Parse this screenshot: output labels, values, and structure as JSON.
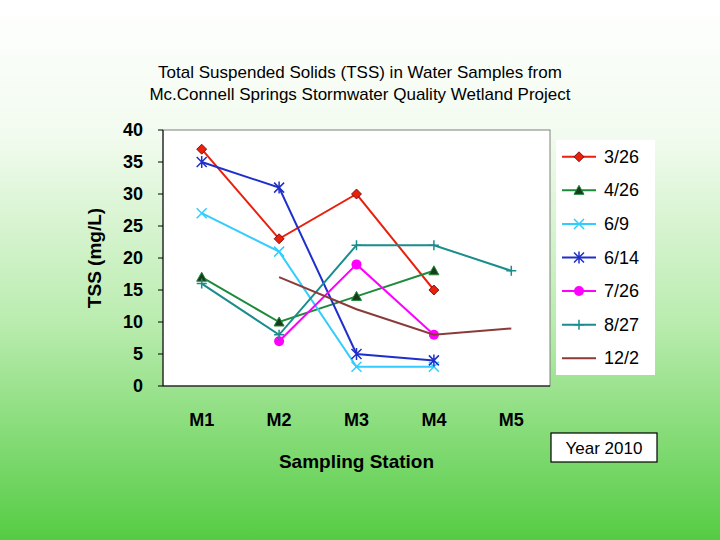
{
  "chart_data": {
    "type": "line",
    "title": "Total Suspended Solids (TSS) in Water Samples from\nMc.Connell Springs Stormwater Quality Wetland Project",
    "x_label": "Sampling Station",
    "y_label": "TSS (mg/L)",
    "annotation": "Year 2010",
    "categories": [
      "M1",
      "M2",
      "M3",
      "M4",
      "M5"
    ],
    "ylim": [
      0,
      40
    ],
    "yticks": [
      0,
      5,
      10,
      15,
      20,
      25,
      30,
      35,
      40
    ],
    "grid": false,
    "legend": "right",
    "series": [
      {
        "name": "3/26",
        "color": "#e8200c",
        "marker": "diamond",
        "values": [
          37,
          23,
          30,
          15,
          null
        ]
      },
      {
        "name": "4/26",
        "color": "#1e8a3c",
        "marker": "triangle",
        "values": [
          17,
          10,
          14,
          18,
          null
        ]
      },
      {
        "name": "6/9",
        "color": "#33ccff",
        "marker": "x",
        "values": [
          27,
          21,
          3,
          3,
          null
        ]
      },
      {
        "name": "6/14",
        "color": "#1f2fcc",
        "marker": "star",
        "values": [
          35,
          31,
          5,
          4,
          null
        ]
      },
      {
        "name": "7/26",
        "color": "#ff00ff",
        "marker": "circle",
        "values": [
          null,
          7,
          19,
          8,
          null
        ]
      },
      {
        "name": "8/27",
        "color": "#1a8c8c",
        "marker": "plus",
        "values": [
          16,
          8,
          22,
          22,
          18
        ]
      },
      {
        "name": "12/2",
        "color": "#8b3a3a",
        "marker": "none",
        "values": [
          null,
          17,
          12,
          8,
          9
        ]
      }
    ]
  }
}
